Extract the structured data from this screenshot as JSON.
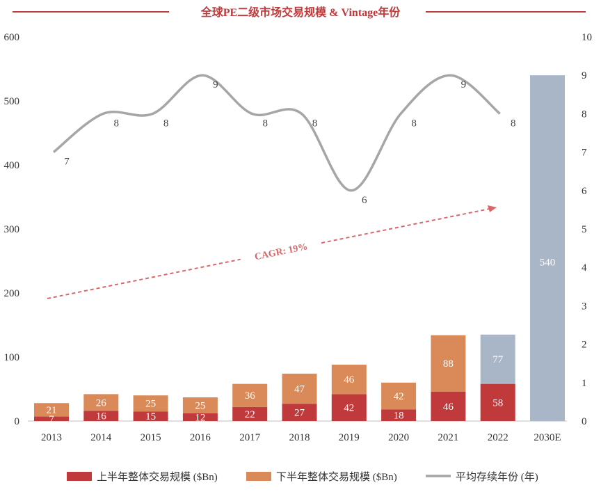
{
  "chart_data": {
    "type": "bar",
    "title": "全球PE二级市场交易规模 & Vintage年份",
    "categories": [
      "2013",
      "2014",
      "2015",
      "2016",
      "2017",
      "2018",
      "2019",
      "2020",
      "2021",
      "2022",
      "2030E"
    ],
    "series": [
      {
        "name": "上半年整体交易规模 ($Bn)",
        "color": "#c0393b",
        "values": [
          7,
          16,
          15,
          12,
          22,
          27,
          42,
          18,
          46,
          58,
          null
        ]
      },
      {
        "name": "下半年整体交易规模 ($Bn)",
        "color": "#d98a58",
        "values": [
          21,
          26,
          25,
          25,
          36,
          47,
          46,
          42,
          88,
          77,
          null
        ],
        "highlight_color": {
          "2022": "#a8b6c8"
        }
      },
      {
        "name": "2030E",
        "color": "#a8b6c8",
        "values": [
          null,
          null,
          null,
          null,
          null,
          null,
          null,
          null,
          null,
          null,
          540
        ]
      },
      {
        "name": "平均存续年份 (年)",
        "type": "line",
        "axis": "right",
        "color": "#a6a6a6",
        "values": [
          7,
          8,
          8,
          9,
          8,
          8,
          6,
          8,
          9,
          8,
          null
        ]
      }
    ],
    "left_axis": {
      "min": 0,
      "max": 600,
      "ticks": [
        0,
        100,
        200,
        300,
        400,
        500,
        600
      ]
    },
    "right_axis": {
      "min": 0,
      "max": 10,
      "ticks": [
        0,
        1,
        2,
        3,
        4,
        5,
        6,
        7,
        8,
        9,
        10
      ]
    },
    "annotation": {
      "text": "CAGR: 19%",
      "color": "#d9676a"
    },
    "title_color": "#c0393b",
    "legend_position": "bottom"
  }
}
